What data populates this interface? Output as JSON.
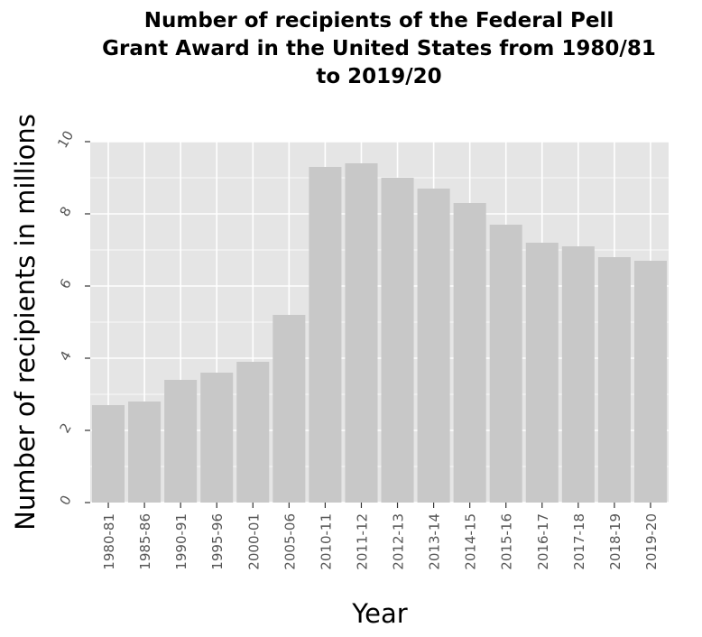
{
  "chart_data": {
    "type": "bar",
    "title_lines": [
      "Number of recipients of the Federal Pell",
      "Grant Award in the United States from 1980/81",
      "to 2019/20"
    ],
    "xlabel": "Year",
    "ylabel": "Number of recipients in millions",
    "ylim": [
      0,
      10
    ],
    "yticks": [
      "0",
      "2",
      "4",
      "6",
      "8",
      "10"
    ],
    "categories": [
      "1980-81",
      "1985-86",
      "1990-91",
      "1995-96",
      "2000-01",
      "2005-06",
      "2010-11",
      "2011-12",
      "2012-13",
      "2013-14",
      "2014-15",
      "2015-16",
      "2016-17",
      "2017-18",
      "2018-19",
      "2019-20"
    ],
    "values": [
      2.7,
      2.8,
      3.4,
      3.6,
      3.9,
      5.2,
      9.3,
      9.4,
      9.0,
      8.7,
      8.3,
      7.7,
      7.2,
      7.1,
      6.8,
      6.7
    ],
    "grid": true,
    "legend": "none",
    "colors": {
      "panel_background": "#e5e5e5",
      "bar_fill": "#c8c8c8",
      "grid": "#ffffff",
      "tick_label": "#555555",
      "axis_line": "#333333"
    }
  }
}
